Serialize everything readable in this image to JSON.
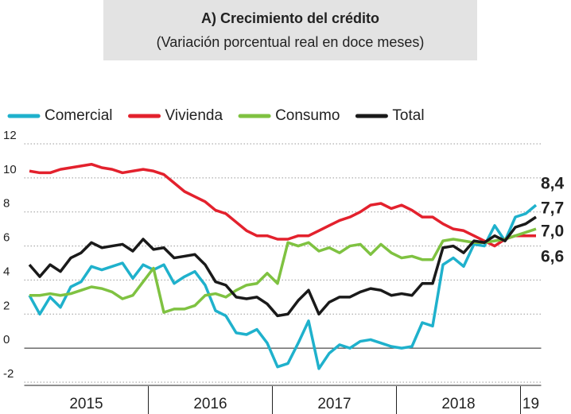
{
  "chart_data": {
    "type": "line",
    "title": "A) Crecimiento del crédito",
    "subtitle": "(Variación porcentual real en doce meses)",
    "categories": [
      "2015",
      null,
      null,
      null,
      null,
      null,
      null,
      null,
      null,
      null,
      null,
      null,
      "2016",
      null,
      null,
      null,
      null,
      null,
      null,
      null,
      null,
      null,
      null,
      null,
      "2017",
      null,
      null,
      null,
      null,
      null,
      null,
      null,
      null,
      null,
      null,
      null,
      "2018",
      null,
      null,
      null,
      null,
      null,
      null,
      null,
      null,
      null,
      null,
      null,
      "19",
      null
    ],
    "ylim": [
      -2,
      12
    ],
    "yticks": [
      -2,
      0,
      2,
      4,
      6,
      8,
      10,
      12
    ],
    "grid": true,
    "series": [
      {
        "name": "Comercial",
        "color": "#1fb1cc",
        "end_label": "8,4",
        "values": [
          3.1,
          2.0,
          3.0,
          2.4,
          3.6,
          3.9,
          4.8,
          4.6,
          4.8,
          5.0,
          4.1,
          4.9,
          4.6,
          4.9,
          3.8,
          4.2,
          4.5,
          3.7,
          2.2,
          1.9,
          0.9,
          0.8,
          1.1,
          0.3,
          -1.1,
          -0.9,
          0.3,
          1.6,
          -1.2,
          -0.3,
          0.2,
          0.0,
          0.4,
          0.5,
          0.3,
          0.1,
          0.0,
          0.1,
          1.5,
          1.3,
          4.9,
          5.3,
          4.8,
          6.1,
          6.0,
          7.2,
          6.3,
          7.7,
          7.9,
          8.4
        ]
      },
      {
        "name": "Vivienda",
        "color": "#e3212d",
        "end_label": "6,6",
        "values": [
          10.4,
          10.3,
          10.3,
          10.5,
          10.6,
          10.7,
          10.8,
          10.6,
          10.5,
          10.3,
          10.4,
          10.5,
          10.4,
          10.2,
          9.7,
          9.2,
          8.9,
          8.6,
          8.1,
          7.9,
          7.4,
          6.9,
          6.6,
          6.6,
          6.4,
          6.4,
          6.6,
          6.6,
          6.9,
          7.2,
          7.5,
          7.7,
          8.0,
          8.4,
          8.5,
          8.2,
          8.4,
          8.1,
          7.7,
          7.7,
          7.3,
          7.0,
          6.9,
          6.6,
          6.3,
          6.0,
          6.4,
          6.6,
          6.6,
          6.6
        ]
      },
      {
        "name": "Consumo",
        "color": "#7fc241",
        "end_label": "7,0",
        "values": [
          3.1,
          3.1,
          3.2,
          3.1,
          3.2,
          3.4,
          3.6,
          3.5,
          3.3,
          2.9,
          3.1,
          3.9,
          4.7,
          2.1,
          2.3,
          2.3,
          2.5,
          3.1,
          3.2,
          3.0,
          3.4,
          3.7,
          3.8,
          4.4,
          3.8,
          6.2,
          6.0,
          6.2,
          5.7,
          5.9,
          5.6,
          6.0,
          6.1,
          5.5,
          6.1,
          5.6,
          5.3,
          5.4,
          5.2,
          5.2,
          6.3,
          6.4,
          6.3,
          6.2,
          6.2,
          6.3,
          6.4,
          6.6,
          6.8,
          7.0
        ]
      },
      {
        "name": "Total",
        "color": "#1a1a1a",
        "end_label": "7,7",
        "values": [
          4.9,
          4.2,
          4.9,
          4.5,
          5.3,
          5.6,
          6.2,
          5.9,
          6.0,
          6.1,
          5.7,
          6.4,
          5.8,
          5.9,
          5.3,
          5.4,
          5.5,
          4.9,
          3.9,
          3.7,
          3.0,
          2.9,
          3.0,
          2.6,
          1.9,
          2.0,
          2.8,
          3.4,
          2.0,
          2.7,
          3.0,
          3.0,
          3.3,
          3.5,
          3.4,
          3.1,
          3.2,
          3.1,
          3.8,
          3.8,
          5.9,
          6.0,
          5.6,
          6.3,
          6.2,
          6.6,
          6.3,
          7.1,
          7.3,
          7.7
        ]
      }
    ]
  }
}
